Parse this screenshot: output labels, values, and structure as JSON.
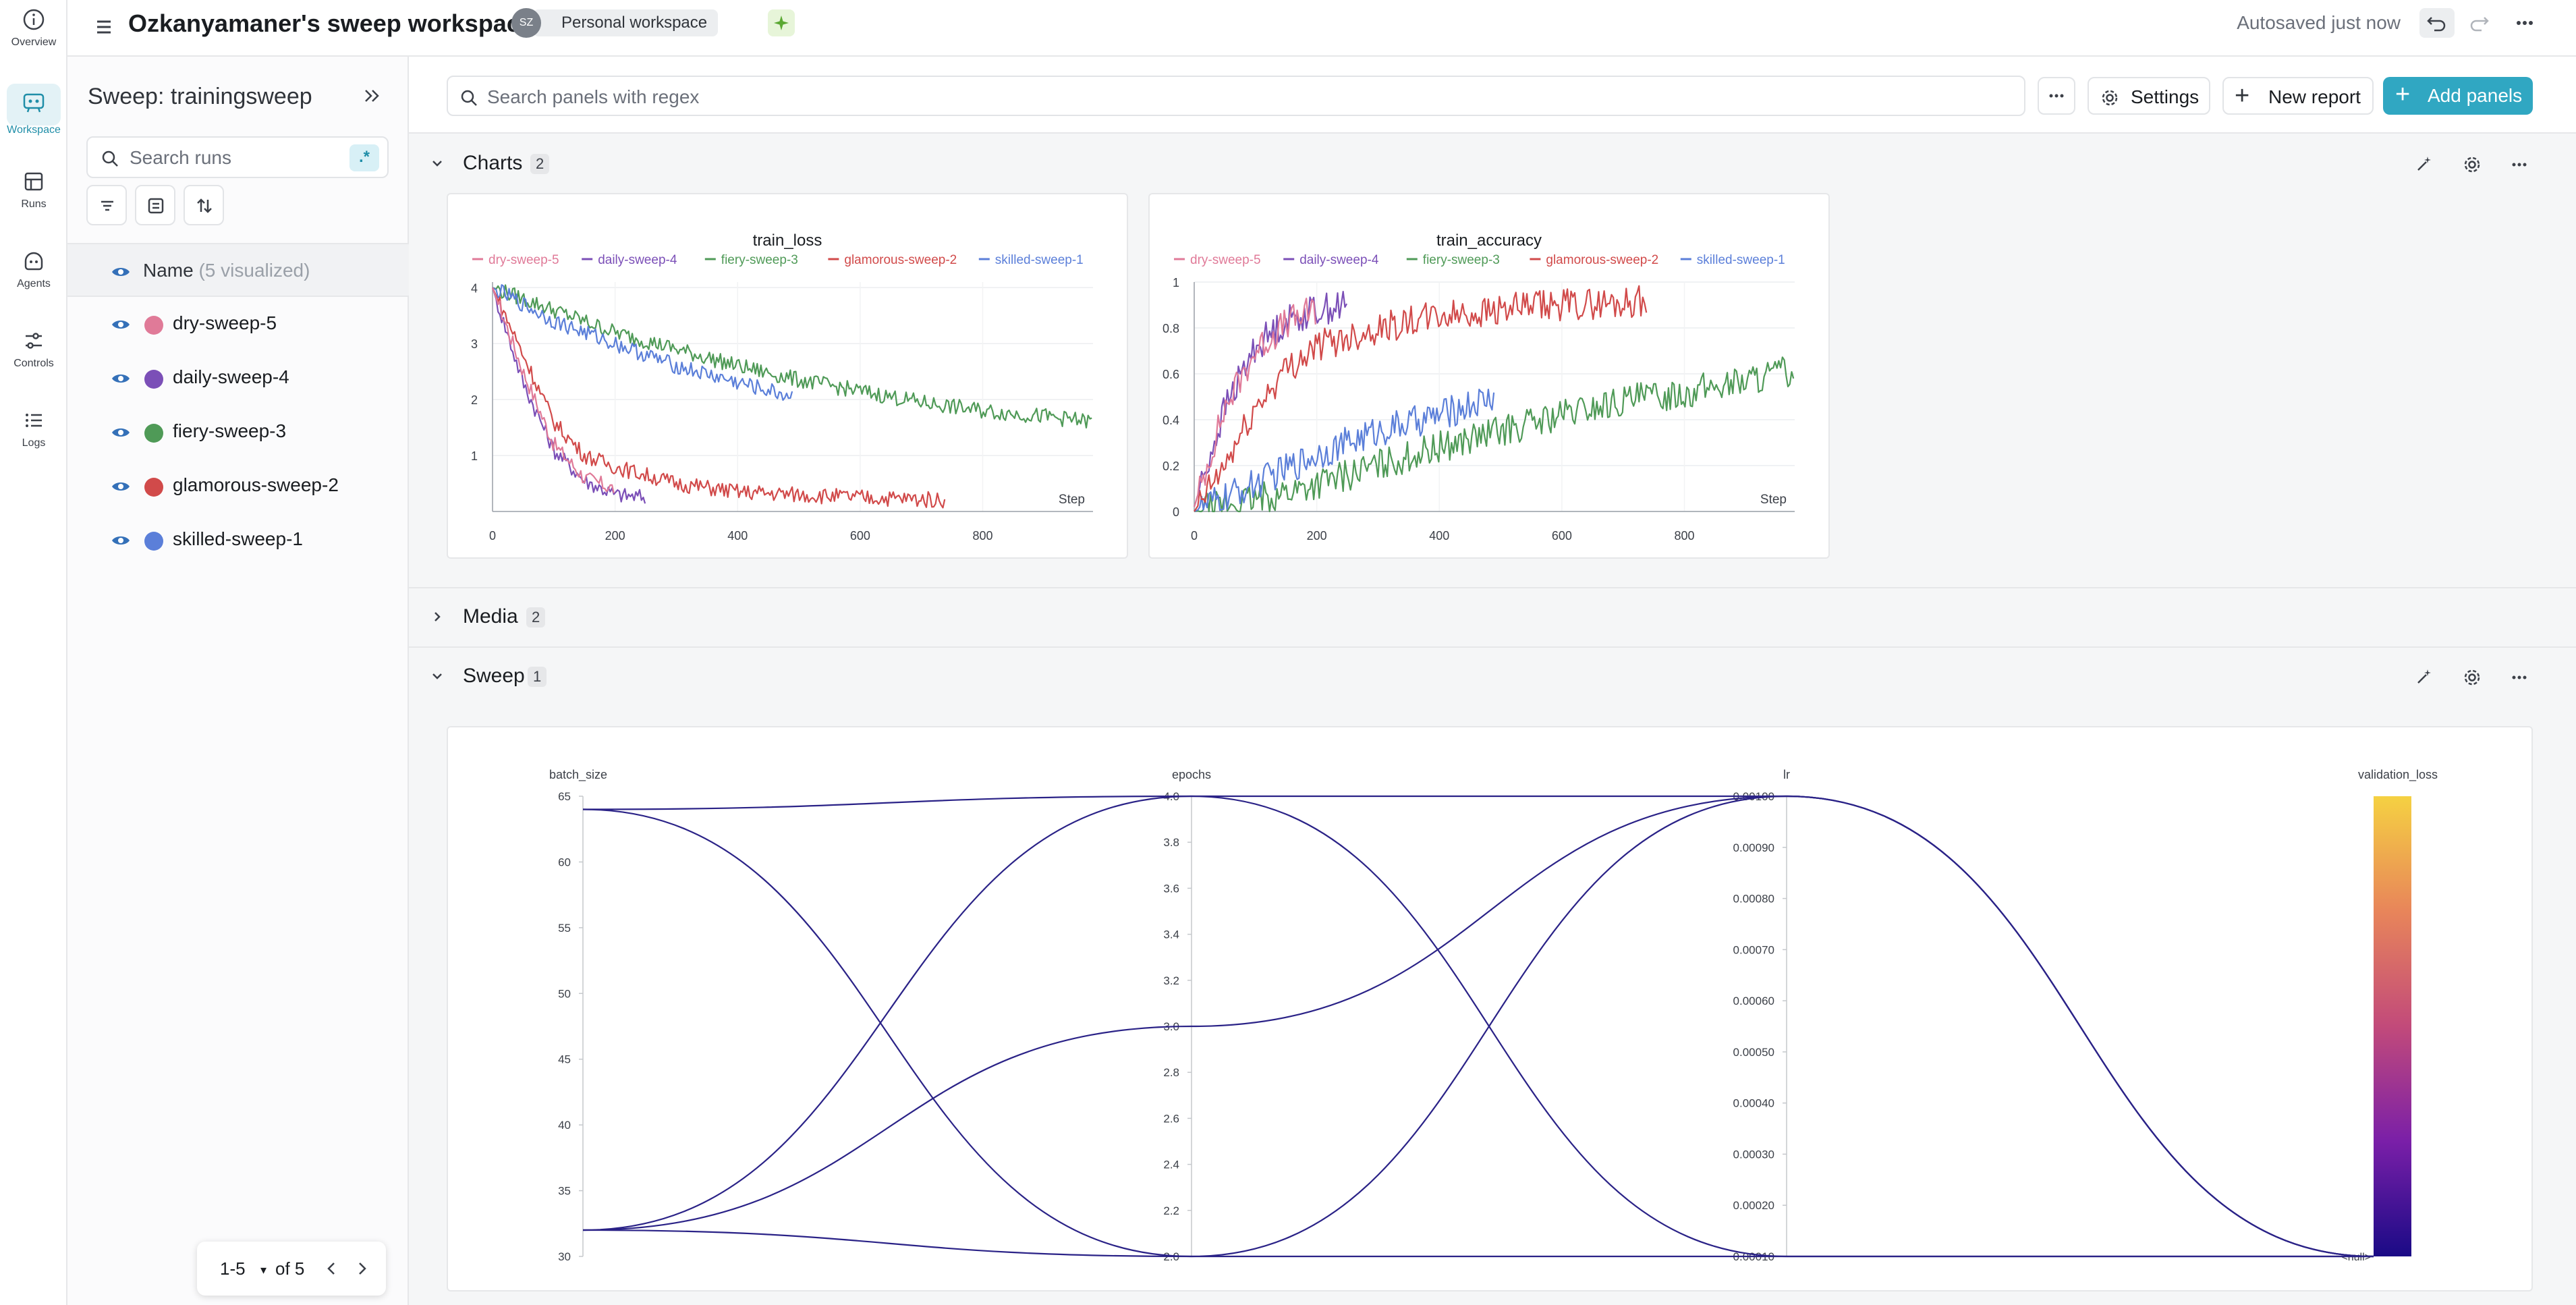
{
  "nav": {
    "items": [
      {
        "label": "Overview",
        "icon": "info-icon"
      },
      {
        "label": "Workspace",
        "icon": "workspace-icon"
      },
      {
        "label": "Runs",
        "icon": "runs-table-icon"
      },
      {
        "label": "Agents",
        "icon": "agent-icon"
      },
      {
        "label": "Controls",
        "icon": "sliders-icon"
      },
      {
        "label": "Logs",
        "icon": "list-icon"
      }
    ],
    "active": "Workspace"
  },
  "header": {
    "title": "Ozkanyamaner's sweep workspace",
    "avatar_initials": "SZ",
    "workspace_badge": "Personal workspace",
    "autosave": "Autosaved just now"
  },
  "sidebar": {
    "sweep_title": "Sweep: trainingsweep",
    "search_placeholder": "Search runs",
    "regex_label": ".*",
    "name_label": "Name",
    "visualized": "(5 visualized)",
    "runs": [
      {
        "name": "dry-sweep-5",
        "color": "#e07a98"
      },
      {
        "name": "daily-sweep-4",
        "color": "#7b4fb7"
      },
      {
        "name": "fiery-sweep-3",
        "color": "#4f9a57"
      },
      {
        "name": "glamorous-sweep-2",
        "color": "#d14a4a"
      },
      {
        "name": "skilled-sweep-1",
        "color": "#5b7fd9"
      }
    ],
    "pager": {
      "range": "1-5",
      "of": "of 5"
    }
  },
  "toolbar": {
    "search_placeholder": "Search panels with regex",
    "settings_label": "Settings",
    "new_report_label": "New report",
    "add_panels_label": "Add panels"
  },
  "sections": {
    "charts": {
      "title": "Charts",
      "count": "2"
    },
    "media": {
      "title": "Media",
      "count": "2"
    },
    "sweep": {
      "title": "Sweep",
      "count": "1"
    }
  },
  "chart_data": [
    {
      "type": "line",
      "title": "train_loss",
      "xlabel": "Step",
      "xlim": [
        0,
        980
      ],
      "ylim": [
        0,
        4.1
      ],
      "xticks": [
        0,
        200,
        400,
        600,
        800
      ],
      "yticks": [
        1,
        2,
        3,
        4
      ],
      "legend": "top",
      "series": [
        {
          "name": "dry-sweep-5",
          "color": "#e07a98",
          "x": [
            0,
            50,
            100,
            150,
            200
          ],
          "y": [
            4.0,
            2.5,
            1.2,
            0.6,
            0.4
          ]
        },
        {
          "name": "daily-sweep-4",
          "color": "#7b4fb7",
          "x": [
            0,
            50,
            100,
            150,
            200,
            250
          ],
          "y": [
            4.0,
            2.3,
            1.1,
            0.55,
            0.3,
            0.25
          ]
        },
        {
          "name": "fiery-sweep-3",
          "color": "#4f9a57",
          "x": [
            0,
            100,
            200,
            300,
            400,
            500,
            600,
            700,
            800,
            900,
            980
          ],
          "y": [
            4.0,
            3.6,
            3.2,
            2.9,
            2.6,
            2.35,
            2.15,
            1.95,
            1.8,
            1.7,
            1.6
          ]
        },
        {
          "name": "glamorous-sweep-2",
          "color": "#d14a4a",
          "x": [
            0,
            50,
            100,
            150,
            200,
            300,
            400,
            500,
            600,
            700,
            740
          ],
          "y": [
            4.0,
            2.8,
            1.6,
            1.0,
            0.8,
            0.5,
            0.35,
            0.3,
            0.25,
            0.22,
            0.2
          ]
        },
        {
          "name": "skilled-sweep-1",
          "color": "#5b7fd9",
          "x": [
            0,
            100,
            200,
            300,
            400,
            490
          ],
          "y": [
            4.0,
            3.4,
            3.0,
            2.6,
            2.3,
            2.05
          ]
        }
      ]
    },
    {
      "type": "line",
      "title": "train_accuracy",
      "xlabel": "Step",
      "xlim": [
        0,
        980
      ],
      "ylim": [
        0,
        1
      ],
      "xticks": [
        0,
        200,
        400,
        600,
        800
      ],
      "yticks": [
        0,
        0.2,
        0.4,
        0.6,
        0.8,
        1
      ],
      "legend": "top",
      "series": [
        {
          "name": "dry-sweep-5",
          "color": "#e07a98",
          "x": [
            0,
            50,
            100,
            150,
            200
          ],
          "y": [
            0.02,
            0.45,
            0.7,
            0.82,
            0.88
          ]
        },
        {
          "name": "daily-sweep-4",
          "color": "#7b4fb7",
          "x": [
            0,
            50,
            100,
            150,
            200,
            250
          ],
          "y": [
            0.02,
            0.45,
            0.72,
            0.83,
            0.88,
            0.9
          ]
        },
        {
          "name": "fiery-sweep-3",
          "color": "#4f9a57",
          "x": [
            0,
            100,
            200,
            300,
            400,
            500,
            600,
            700,
            800,
            900,
            980
          ],
          "y": [
            0.0,
            0.05,
            0.12,
            0.2,
            0.28,
            0.35,
            0.42,
            0.48,
            0.52,
            0.57,
            0.62
          ]
        },
        {
          "name": "glamorous-sweep-2",
          "color": "#d14a4a",
          "x": [
            0,
            50,
            100,
            150,
            200,
            300,
            400,
            500,
            600,
            700,
            740
          ],
          "y": [
            0.0,
            0.2,
            0.45,
            0.62,
            0.72,
            0.8,
            0.85,
            0.88,
            0.9,
            0.91,
            0.92
          ]
        },
        {
          "name": "skilled-sweep-1",
          "color": "#5b7fd9",
          "x": [
            0,
            100,
            200,
            300,
            400,
            490
          ],
          "y": [
            0.0,
            0.12,
            0.25,
            0.35,
            0.42,
            0.5
          ]
        }
      ]
    },
    {
      "type": "parallel-coordinates",
      "axes": [
        {
          "name": "batch_size",
          "ticks": [
            "65",
            "60",
            "55",
            "50",
            "45",
            "40",
            "35",
            "30"
          ],
          "range": [
            30,
            65
          ]
        },
        {
          "name": "epochs",
          "ticks": [
            "4.0",
            "3.8",
            "3.6",
            "3.4",
            "3.2",
            "3.0",
            "2.8",
            "2.6",
            "2.4",
            "2.2",
            "2.0"
          ],
          "range": [
            2,
            4
          ]
        },
        {
          "name": "lr",
          "ticks": [
            "0.00100",
            "0.00090",
            "0.00080",
            "0.00070",
            "0.00060",
            "0.00050",
            "0.00040",
            "0.00030",
            "0.00020",
            "0.00010"
          ],
          "range": [
            0.0001,
            0.001
          ]
        },
        {
          "name": "validation_loss",
          "ticks": [
            "<null>"
          ],
          "colorbar": [
            "#f5d142",
            "#e8855a",
            "#c24a7a",
            "#7a1fa8",
            "#1a0a86"
          ]
        }
      ],
      "lines": [
        {
          "batch_size": 64,
          "epochs": 4,
          "lr": 0.0001
        },
        {
          "batch_size": 64,
          "epochs": 2,
          "lr": 0.0001
        },
        {
          "batch_size": 32,
          "epochs": 4,
          "lr": 0.001
        },
        {
          "batch_size": 32,
          "epochs": 3,
          "lr": 0.001
        },
        {
          "batch_size": 32,
          "epochs": 2,
          "lr": 0.001
        }
      ],
      "line_color": "#2a2287"
    }
  ]
}
